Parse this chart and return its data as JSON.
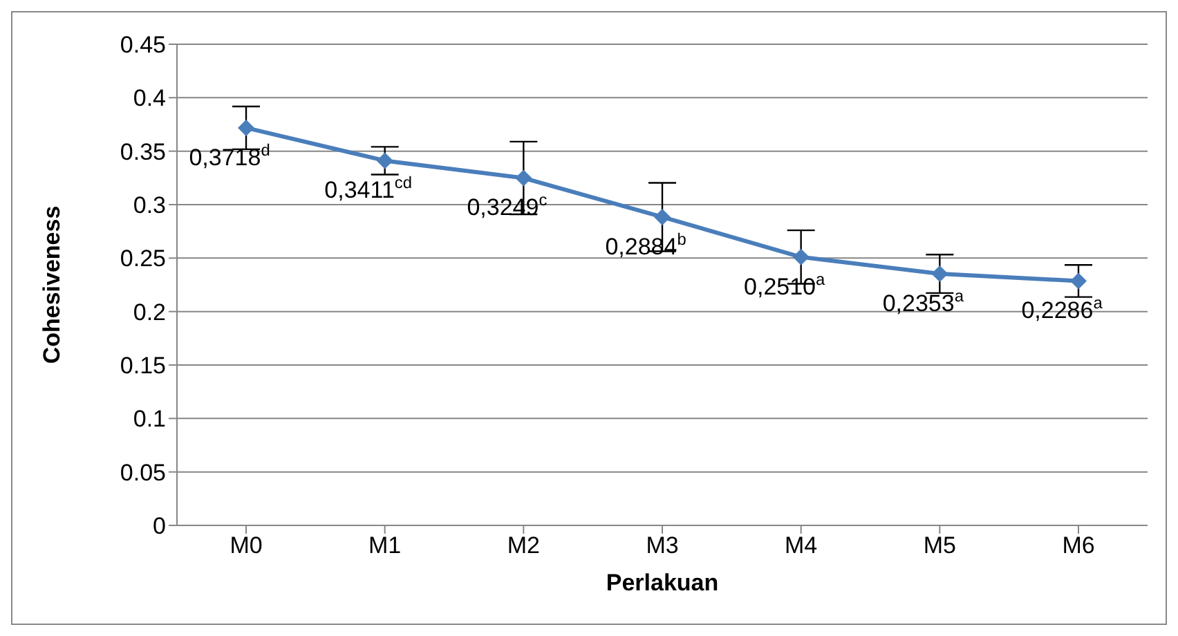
{
  "chart_data": {
    "type": "line",
    "xlabel": "Perlakuan",
    "ylabel": "Cohesiveness",
    "categories": [
      "M0",
      "M1",
      "M2",
      "M3",
      "M4",
      "M5",
      "M6"
    ],
    "series": [
      {
        "color": "#4a7ebb",
        "values": [
          0.3718,
          0.3411,
          0.3249,
          0.2884,
          0.251,
          0.2353,
          0.2286
        ],
        "errors": [
          0.02,
          0.013,
          0.034,
          0.032,
          0.025,
          0.018,
          0.015
        ],
        "value_labels": [
          "0,3718$^{d}$",
          "0,3411$^{cd}$",
          "0,3249$^{c}$",
          "0,2884$^{b}$",
          "0,2510$^{a}$",
          "0,2353$^{a}$",
          "0,2286$^{a}$"
        ]
      }
    ],
    "ylim": [
      0,
      0.45
    ],
    "yticks": [
      0,
      0.05,
      0.1,
      0.15,
      0.2,
      0.25,
      0.3,
      0.35,
      0.4,
      0.45
    ],
    "grid": "y",
    "legend": false,
    "marker": "diamond",
    "line_style": "solid"
  }
}
